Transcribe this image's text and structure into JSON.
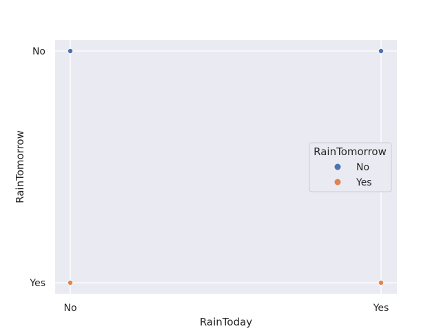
{
  "chart_data": {
    "type": "scatter",
    "xlabel": "RainToday",
    "ylabel": "RainTomorrow",
    "x_categories": [
      "No",
      "Yes"
    ],
    "y_categories": [
      "No",
      "Yes"
    ],
    "grid": true,
    "legend": {
      "title": "RainTomorrow",
      "placement": "center-right",
      "entries": [
        {
          "name": "No",
          "color": "#4c72b0"
        },
        {
          "name": "Yes",
          "color": "#dd8452"
        }
      ]
    },
    "series": [
      {
        "name": "No",
        "color": "#4c72b0",
        "points": [
          {
            "x": "No",
            "y": "No"
          },
          {
            "x": "Yes",
            "y": "No"
          }
        ]
      },
      {
        "name": "Yes",
        "color": "#dd8452",
        "points": [
          {
            "x": "No",
            "y": "Yes"
          },
          {
            "x": "Yes",
            "y": "Yes"
          }
        ]
      }
    ]
  },
  "style": {
    "background": "#eaeaf2",
    "grid_color": "#ffffff"
  }
}
